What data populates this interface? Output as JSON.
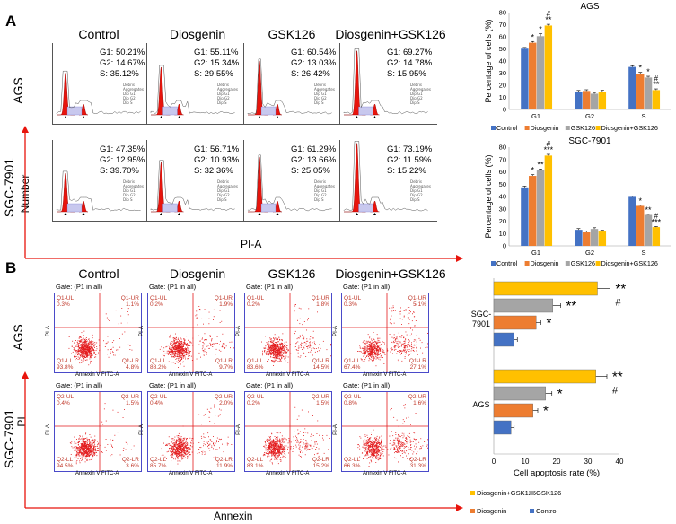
{
  "figure": {
    "panel_a_label": "A",
    "panel_b_label": "B",
    "cell_cycle": {
      "columns": [
        "Control",
        "Diosgenin",
        "GSK126",
        "Diosgenin+GSK126"
      ],
      "rows": [
        {
          "label": "AGS",
          "stats": [
            [
              "G1: 50.21%",
              "G2: 14.67%",
              "S: 35.12%"
            ],
            [
              "G1: 55.11%",
              "G2: 15.34%",
              "S: 29.55%"
            ],
            [
              "G1: 60.54%",
              "G2: 13.03%",
              "S: 26.42%"
            ],
            [
              "G1: 69.27%",
              "G2: 14.78%",
              "S: 15.95%"
            ]
          ]
        },
        {
          "label": "SGC-7901",
          "stats": [
            [
              "G1: 47.35%",
              "G2: 12.95%",
              "S: 39.70%"
            ],
            [
              "G1: 56.71%",
              "G2: 10.93%",
              "S: 32.36%"
            ],
            [
              "G1: 61.29%",
              "G2: 13.66%",
              "S: 25.05%"
            ],
            [
              "G1: 73.19%",
              "G2: 11.59%",
              "S: 15.22%"
            ]
          ]
        }
      ],
      "y_axis_label": "Number",
      "x_axis_label": "PI-A",
      "hist_ylabel": "Number",
      "hist_legend": [
        "Debris",
        "Aggregates",
        "Dip G1",
        "Dip G2",
        "Dip S"
      ]
    },
    "apoptosis": {
      "columns": [
        "Control",
        "Diosgenin",
        "GSK126",
        "Diosgenin+GSK126"
      ],
      "gate_text": "Gate: (P1 in all)",
      "x_axis_label": "Annexin",
      "y_axis_label": "PI",
      "plot_xlabel": "Annexin V FITC-A",
      "plot_ylabel": "PI-A",
      "rows": [
        {
          "label": "AGS",
          "quads": [
            {
              "ul": "Q1-UL",
              "ul_v": "0.3%",
              "ur": "Q1-UR",
              "ur_v": "1.1%",
              "ll": "Q1-LL",
              "ll_v": "93.8%",
              "lr": "Q1-LR",
              "lr_v": "4.8%"
            },
            {
              "ul": "Q1-UL",
              "ul_v": "0.2%",
              "ur": "Q1-UR",
              "ur_v": "1.9%",
              "ll": "Q1-LL",
              "ll_v": "88.2%",
              "lr": "Q1-LR",
              "lr_v": "9.7%"
            },
            {
              "ul": "Q1-UL",
              "ul_v": "0.2%",
              "ur": "Q1-UR",
              "ur_v": "1.8%",
              "ll": "Q1-LL",
              "ll_v": "83.6%",
              "lr": "Q1-LR",
              "lr_v": "14.5%"
            },
            {
              "ul": "Q1-UL",
              "ul_v": "0.3%",
              "ur": "Q1-UR",
              "ur_v": "5.1%",
              "ll": "Q1-LL",
              "ll_v": "67.4%",
              "lr": "Q1-LR",
              "lr_v": "27.1%"
            }
          ]
        },
        {
          "label": "SGC-7901",
          "quads": [
            {
              "ul": "Q2-UL",
              "ul_v": "0.4%",
              "ur": "Q2-UR",
              "ur_v": "1.5%",
              "ll": "Q2-LL",
              "ll_v": "94.5%",
              "lr": "Q2-LR",
              "lr_v": "3.6%"
            },
            {
              "ul": "Q2-UL",
              "ul_v": "0.4%",
              "ur": "Q2-UR",
              "ur_v": "2.0%",
              "ll": "Q2-LL",
              "ll_v": "85.7%",
              "lr": "Q2-LR",
              "lr_v": "11.9%"
            },
            {
              "ul": "Q2-UL",
              "ul_v": "0.2%",
              "ur": "Q2-UR",
              "ur_v": "1.5%",
              "ll": "Q2-LL",
              "ll_v": "83.1%",
              "lr": "Q2-LR",
              "lr_v": "15.2%"
            },
            {
              "ul": "Q2-UL",
              "ul_v": "0.8%",
              "ur": "Q2-UR",
              "ur_v": "1.6%",
              "ll": "Q2-LL",
              "ll_v": "66.3%",
              "lr": "Q2-LR",
              "lr_v": "31.3%"
            }
          ]
        }
      ]
    }
  },
  "colors": {
    "control": "#4472c4",
    "diosgenin": "#ed7d31",
    "gsk126": "#a5a5a5",
    "combo": "#ffc000",
    "dot_red": "#e31a1c",
    "hist_red": "#e8140c",
    "axis_red": "#e8140c"
  },
  "chart_data": [
    {
      "type": "bar",
      "title": "AGS",
      "ylabel": "Percentage of cells (%)",
      "xlabel": "",
      "ylim": [
        0,
        80
      ],
      "yticks": [
        0,
        10,
        20,
        30,
        40,
        50,
        60,
        70,
        80
      ],
      "categories": [
        "G1",
        "G2",
        "S"
      ],
      "series": [
        {
          "name": "Control",
          "values": [
            50.2,
            14.7,
            35.1
          ],
          "errors": [
            1.0,
            1.0,
            1.0
          ]
        },
        {
          "name": "Diosgenin",
          "values": [
            55.1,
            15.3,
            29.6
          ],
          "errors": [
            1.0,
            1.0,
            1.0
          ]
        },
        {
          "name": "GSK126",
          "values": [
            60.5,
            13.0,
            26.4
          ],
          "errors": [
            2.0,
            1.0,
            1.0
          ]
        },
        {
          "name": "Diosgenin+GSK126",
          "values": [
            69.3,
            14.8,
            16.0
          ],
          "errors": [
            1.0,
            1.0,
            1.0
          ]
        }
      ],
      "annotations": [
        {
          "category": "G1",
          "series": "Diosgenin",
          "text": "*"
        },
        {
          "category": "G1",
          "series": "GSK126",
          "text": "*"
        },
        {
          "category": "G1",
          "series": "Diosgenin+GSK126",
          "text": "**"
        },
        {
          "category": "G1",
          "series": "Diosgenin+GSK126",
          "text": "#"
        },
        {
          "category": "S",
          "series": "Diosgenin",
          "text": "*"
        },
        {
          "category": "S",
          "series": "GSK126",
          "text": "*"
        },
        {
          "category": "S",
          "series": "Diosgenin+GSK126",
          "text": "**"
        },
        {
          "category": "S",
          "series": "Diosgenin+GSK126",
          "text": "#"
        }
      ],
      "legend": [
        "Control",
        "Diosgenin",
        "GSK126",
        "Diosgenin+GSK126"
      ],
      "legend_position": "bottom"
    },
    {
      "type": "bar",
      "title": "SGC-7901",
      "ylabel": "Percentage of cells (%)",
      "xlabel": "",
      "ylim": [
        0,
        80
      ],
      "yticks": [
        0,
        10,
        20,
        30,
        40,
        50,
        60,
        70,
        80
      ],
      "categories": [
        "G1",
        "G2",
        "S"
      ],
      "series": [
        {
          "name": "Control",
          "values": [
            47.4,
            13.0,
            39.7
          ],
          "errors": [
            1.0,
            1.0,
            0.5
          ]
        },
        {
          "name": "Diosgenin",
          "values": [
            56.7,
            10.9,
            32.4
          ],
          "errors": [
            1.0,
            1.0,
            0.5
          ]
        },
        {
          "name": "GSK126",
          "values": [
            61.3,
            13.7,
            25.1
          ],
          "errors": [
            1.0,
            1.0,
            0.5
          ]
        },
        {
          "name": "Diosgenin+GSK126",
          "values": [
            73.2,
            11.6,
            15.2
          ],
          "errors": [
            1.0,
            1.0,
            0.5
          ]
        }
      ],
      "annotations": [
        {
          "category": "G1",
          "series": "Diosgenin",
          "text": "*"
        },
        {
          "category": "G1",
          "series": "GSK126",
          "text": "**"
        },
        {
          "category": "G1",
          "series": "Diosgenin+GSK126",
          "text": "***"
        },
        {
          "category": "G1",
          "series": "Diosgenin+GSK126",
          "text": "#"
        },
        {
          "category": "S",
          "series": "Diosgenin",
          "text": "*"
        },
        {
          "category": "S",
          "series": "GSK126",
          "text": "**"
        },
        {
          "category": "S",
          "series": "Diosgenin+GSK126",
          "text": "***"
        },
        {
          "category": "S",
          "series": "Diosgenin+GSK126",
          "text": "#"
        }
      ],
      "legend": [
        "Control",
        "Diosgenin",
        "GSK126",
        "Diosgenin+GSK126"
      ],
      "legend_position": "bottom"
    },
    {
      "type": "bar",
      "orientation": "horizontal",
      "title": "",
      "xlabel": "Cell apoptosis rate (%)",
      "ylabel": "",
      "xlim": [
        0,
        40
      ],
      "xticks": [
        0,
        10,
        20,
        30,
        40
      ],
      "categories": [
        "SGC-7901",
        "AGS"
      ],
      "series": [
        {
          "name": "Diosgenin+GSK126",
          "values": [
            33.0,
            32.5
          ],
          "errors": [
            4.0,
            3.5
          ]
        },
        {
          "name": "GSK126",
          "values": [
            18.8,
            16.5
          ],
          "errors": [
            2.5,
            2.0
          ]
        },
        {
          "name": "Diosgenin",
          "values": [
            13.5,
            12.5
          ],
          "errors": [
            1.5,
            1.5
          ]
        },
        {
          "name": "Control",
          "values": [
            6.5,
            5.5
          ],
          "errors": [
            1.0,
            1.0
          ]
        }
      ],
      "annotations": [
        {
          "category": "SGC-7901",
          "series": "Diosgenin+GSK126",
          "text": "**"
        },
        {
          "category": "SGC-7901",
          "series": "Diosgenin+GSK126",
          "text": "#"
        },
        {
          "category": "SGC-7901",
          "series": "GSK126",
          "text": "**"
        },
        {
          "category": "SGC-7901",
          "series": "Diosgenin",
          "text": "*"
        },
        {
          "category": "AGS",
          "series": "Diosgenin+GSK126",
          "text": "**"
        },
        {
          "category": "AGS",
          "series": "Diosgenin+GSK126",
          "text": "#"
        },
        {
          "category": "AGS",
          "series": "GSK126",
          "text": "*"
        },
        {
          "category": "AGS",
          "series": "Diosgenin",
          "text": "*"
        }
      ],
      "legend": [
        "Diosgenin+GSK126",
        "GSK126",
        "Diosgenin",
        "Control"
      ],
      "legend_position": "bottom"
    }
  ]
}
